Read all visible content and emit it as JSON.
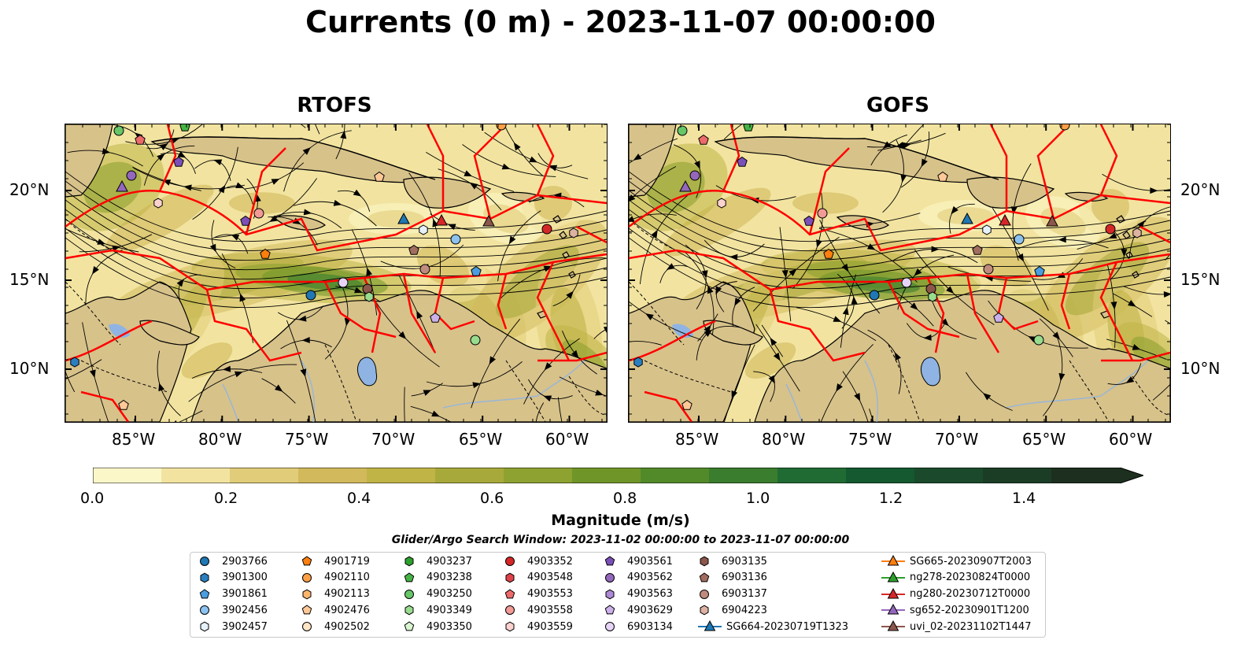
{
  "title": "Currents (0 m) - 2023-11-07 00:00:00",
  "panels": [
    {
      "title": "RTOFS"
    },
    {
      "title": "GOFS"
    }
  ],
  "lat_labels": [
    "20°N",
    "15°N",
    "10°N"
  ],
  "lon_labels": [
    "85°W",
    "80°W",
    "75°W",
    "70°W",
    "65°W",
    "60°W"
  ],
  "map_extent": {
    "lon": [
      -89.6,
      -58.4
    ],
    "lat": [
      7.1,
      23.8
    ]
  },
  "colorbar": {
    "ticks": [
      "0.0",
      "0.2",
      "0.4",
      "0.6",
      "0.8",
      "1.0",
      "1.2",
      "1.4"
    ],
    "label": "Magnitude (m/s)",
    "range": [
      0.0,
      1.5
    ],
    "extend": "max",
    "colors": [
      "#fcf7c9",
      "#f2e4a0",
      "#e1cc79",
      "#d1b95c",
      "#c0b447",
      "#a8a93b",
      "#8ea231",
      "#6f9528",
      "#528a2a",
      "#3a7d2e",
      "#1f6b33",
      "#14592f",
      "#1a4a2b",
      "#1b3d26",
      "#1d2f1e"
    ]
  },
  "search_window": "Glider/Argo Search Window: 2023-11-02 00:00:00 to 2023-11-07 00:00:00",
  "legend": [
    {
      "label": "2903766",
      "marker": "circle",
      "color": "#1f77b4"
    },
    {
      "label": "3901300",
      "marker": "hexagon",
      "color": "#2a7fc1"
    },
    {
      "label": "3901861",
      "marker": "pentagon",
      "color": "#4a9de0"
    },
    {
      "label": "3902456",
      "marker": "circle",
      "color": "#8cc2ef"
    },
    {
      "label": "3902457",
      "marker": "hexagon",
      "color": "#e6f1fb"
    },
    {
      "label": "4901719",
      "marker": "pentagon",
      "color": "#ff7f0e"
    },
    {
      "label": "4902110",
      "marker": "circle",
      "color": "#ff9f45"
    },
    {
      "label": "4902113",
      "marker": "hexagon",
      "color": "#ffb56b"
    },
    {
      "label": "4902476",
      "marker": "pentagon",
      "color": "#ffc896"
    },
    {
      "label": "4902502",
      "marker": "circle",
      "color": "#ffe4c6"
    },
    {
      "label": "4903237",
      "marker": "hexagon",
      "color": "#2ca02c"
    },
    {
      "label": "4903238",
      "marker": "pentagon",
      "color": "#45b345"
    },
    {
      "label": "4903250",
      "marker": "circle",
      "color": "#67c667"
    },
    {
      "label": "4903349",
      "marker": "hexagon",
      "color": "#98dc8e"
    },
    {
      "label": "4903350",
      "marker": "pentagon",
      "color": "#d8f5cf"
    },
    {
      "label": "4903352",
      "marker": "circle",
      "color": "#d62728"
    },
    {
      "label": "4903548",
      "marker": "hexagon",
      "color": "#e0424a"
    },
    {
      "label": "4903553",
      "marker": "pentagon",
      "color": "#ec6a6a"
    },
    {
      "label": "4903558",
      "marker": "circle",
      "color": "#f29a96"
    },
    {
      "label": "4903559",
      "marker": "hexagon",
      "color": "#fbd2cf"
    },
    {
      "label": "4903561",
      "marker": "pentagon",
      "color": "#7b4fb8"
    },
    {
      "label": "4903562",
      "marker": "circle",
      "color": "#9467bd"
    },
    {
      "label": "4903563",
      "marker": "hexagon",
      "color": "#ad89d6"
    },
    {
      "label": "4903629",
      "marker": "pentagon",
      "color": "#cbb0ea"
    },
    {
      "label": "6903134",
      "marker": "circle",
      "color": "#e6d4f7"
    },
    {
      "label": "6903135",
      "marker": "hexagon",
      "color": "#8c564b"
    },
    {
      "label": "6903136",
      "marker": "pentagon",
      "color": "#a06d5f"
    },
    {
      "label": "6903137",
      "marker": "circle",
      "color": "#c08b7e"
    },
    {
      "label": "6904223",
      "marker": "hexagon",
      "color": "#ddb2a2"
    },
    {
      "label": "SG664-20230719T1323",
      "marker": "triangle-line",
      "color": "#1f77b4"
    },
    {
      "label": "SG665-20230907T2003",
      "marker": "triangle-line",
      "color": "#ff7f0e"
    },
    {
      "label": "ng278-20230824T0000",
      "marker": "triangle-line",
      "color": "#2ca02c"
    },
    {
      "label": "ng280-20230712T0000",
      "marker": "triangle-line",
      "color": "#d62728"
    },
    {
      "label": "sg652-20230901T1200",
      "marker": "triangle-line",
      "color": "#9467bd"
    },
    {
      "label": "uvi_02-20231102T1447",
      "marker": "triangle-line",
      "color": "#8c564b"
    }
  ],
  "map_colors": {
    "land": "#d7c28a",
    "lake": "#8fb4e3",
    "river": "#9bb6d6",
    "boundary": "#ff0000",
    "streamline": "#000000"
  }
}
